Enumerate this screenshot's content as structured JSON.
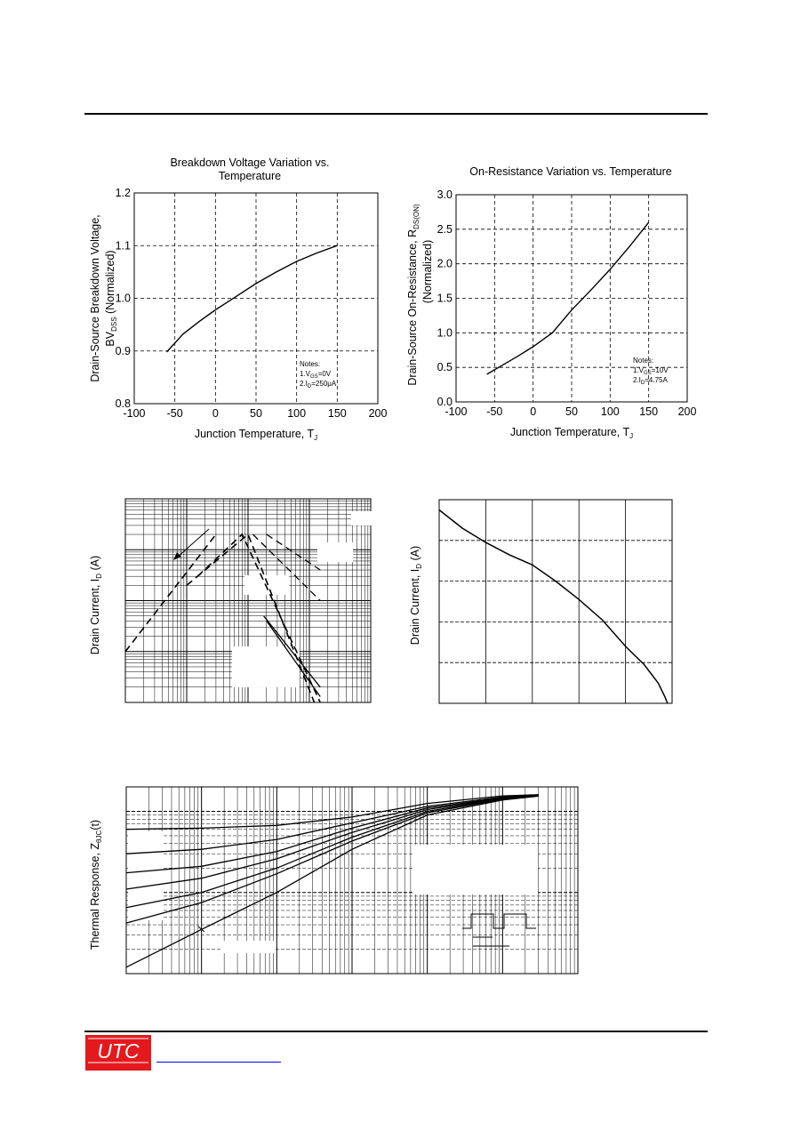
{
  "footer": {
    "logo_text": "UTC",
    "link_text": ""
  },
  "chart_data": [
    {
      "type": "line",
      "title": [
        "Breakdown Voltage Variation vs.",
        "Temperature"
      ],
      "xlabel": "Junction Temperature, T",
      "xlabel_sub": "J",
      "ylabel": [
        "Drain-Source Breakdown Voltage,",
        "BV",
        "DSS",
        " (Normalized)"
      ],
      "xlim": [
        -100,
        200
      ],
      "ylim": [
        0.8,
        1.2
      ],
      "xticks": [
        -100,
        -50,
        0,
        50,
        100,
        150,
        200
      ],
      "yticks": [
        0.8,
        0.9,
        1.0,
        1.1,
        1.2
      ],
      "ytick_labels": [
        "0.8",
        "0.9",
        "1.0",
        "1.1",
        "1.2"
      ],
      "x": [
        -60,
        -40,
        -20,
        0,
        25,
        50,
        75,
        100,
        125,
        150
      ],
      "y": [
        0.898,
        0.932,
        0.956,
        0.978,
        1.003,
        1.028,
        1.05,
        1.07,
        1.086,
        1.1
      ],
      "notes": [
        "Notes:",
        "1.V",
        "GS",
        "=0V",
        "2.I",
        "D",
        "=250μA"
      ],
      "grid": true
    },
    {
      "type": "line",
      "title": [
        "On-Resistance Variation vs. Temperature"
      ],
      "xlabel": "Junction Temperature, T",
      "xlabel_sub": "J",
      "ylabel": [
        "Drain-Source On-Resistance, R",
        "DS(ON)",
        "(Normalized)"
      ],
      "xlim": [
        -100,
        200
      ],
      "ylim": [
        0,
        3.0
      ],
      "xticks": [
        -100,
        -50,
        0,
        50,
        100,
        150,
        200
      ],
      "yticks": [
        0,
        0.5,
        1.0,
        1.5,
        2.0,
        2.5,
        3.0
      ],
      "ytick_labels": [
        "0.0",
        "0.5",
        "1.0",
        "1.5",
        "2.0",
        "2.5",
        "3.0"
      ],
      "x": [
        -60,
        -40,
        -20,
        0,
        25,
        50,
        75,
        100,
        125,
        150
      ],
      "y": [
        0.4,
        0.53,
        0.66,
        0.8,
        1.0,
        1.33,
        1.62,
        1.92,
        2.25,
        2.6
      ],
      "notes": [
        "Notes:",
        "1.V",
        "GS",
        "=10V",
        "2.I",
        "D",
        "=4.75A"
      ],
      "grid": true
    },
    {
      "type": "line",
      "title": "",
      "xlabel": "",
      "ylabel": [
        "Drain Current, I",
        "D",
        " (A)"
      ],
      "x_scale": "log",
      "y_scale": "log",
      "xlim": [
        0.1,
        1000
      ],
      "ylim": [
        0.01,
        100
      ],
      "series": [
        {
          "x": [
            0.1,
            3
          ],
          "y": [
            0.1,
            20
          ]
        },
        {
          "x": [
            1,
            10,
            120
          ],
          "y": [
            2,
            20,
            0.01
          ]
        },
        {
          "x": [
            1.5,
            8,
            150
          ],
          "y": [
            3,
            20,
            0.01
          ]
        },
        {
          "x": [
            12,
            150
          ],
          "y": [
            20,
            1
          ]
        },
        {
          "x": [
            20,
            150
          ],
          "y": [
            20,
            4
          ]
        },
        {
          "x": [
            20,
            150
          ],
          "y": [
            0.4,
            0.013
          ]
        },
        {
          "x": [
            18,
            150
          ],
          "y": [
            0.5,
            0.02
          ]
        }
      ],
      "grid": true
    },
    {
      "type": "line",
      "title": "",
      "xlabel": "",
      "ylabel": [
        "Drain Current, I",
        "D",
        " (A)"
      ],
      "xlim": [
        0,
        5
      ],
      "ylim": [
        0,
        5
      ],
      "x": [
        0,
        0.5,
        1,
        1.5,
        2,
        2.5,
        3,
        3.5,
        4,
        4.4,
        4.7,
        4.85,
        4.9
      ],
      "y": [
        4.75,
        4.3,
        3.95,
        3.65,
        3.4,
        3.0,
        2.55,
        2.05,
        1.4,
        0.95,
        0.5,
        0.15,
        0
      ],
      "grid": true
    },
    {
      "type": "line",
      "title": "",
      "xlabel": "",
      "ylabel": [
        "Thermal Response, Z",
        "θJC",
        "(t)"
      ],
      "x_scale": "log",
      "y_scale": "log",
      "xlim": [
        1e-05,
        10
      ],
      "ylim": [
        0.01,
        2
      ],
      "x": [
        1e-05,
        0.0001,
        0.001,
        0.01,
        0.1,
        1,
        3
      ],
      "series": [
        {
          "y": [
            0.6,
            0.62,
            0.67,
            0.85,
            1.25,
            1.55,
            1.6
          ]
        },
        {
          "y": [
            0.3,
            0.34,
            0.45,
            0.72,
            1.15,
            1.5,
            1.58
          ]
        },
        {
          "y": [
            0.175,
            0.21,
            0.32,
            0.62,
            1.1,
            1.47,
            1.57
          ]
        },
        {
          "y": [
            0.11,
            0.15,
            0.26,
            0.55,
            1.05,
            1.45,
            1.56
          ]
        },
        {
          "y": [
            0.065,
            0.1,
            0.2,
            0.48,
            1.0,
            1.43,
            1.55
          ]
        },
        {
          "y": [
            0.042,
            0.075,
            0.17,
            0.43,
            0.96,
            1.41,
            1.55
          ]
        },
        {
          "y": [
            0.012,
            0.035,
            0.1,
            0.34,
            0.9,
            1.38,
            1.54
          ]
        }
      ],
      "grid": true
    }
  ]
}
